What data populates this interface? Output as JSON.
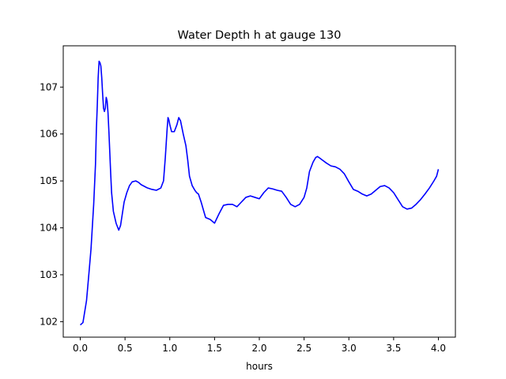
{
  "chart_data": {
    "type": "line",
    "title": "Water Depth h at gauge 130",
    "xlabel": "hours",
    "ylabel": "",
    "xlim": [
      -0.19,
      4.19
    ],
    "ylim": [
      101.67,
      107.88
    ],
    "xticks": [
      0.0,
      0.5,
      1.0,
      1.5,
      2.0,
      2.5,
      3.0,
      3.5,
      4.0
    ],
    "xtick_labels": [
      "0.0",
      "0.5",
      "1.0",
      "1.5",
      "2.0",
      "2.5",
      "3.0",
      "3.5",
      "4.0"
    ],
    "yticks": [
      102,
      103,
      104,
      105,
      106,
      107
    ],
    "ytick_labels": [
      "102",
      "103",
      "104",
      "105",
      "106",
      "107"
    ],
    "grid": false,
    "series": [
      {
        "color": "#0000ff",
        "x": [
          0.0,
          0.03,
          0.07,
          0.1,
          0.12,
          0.15,
          0.17,
          0.18,
          0.19,
          0.2,
          0.21,
          0.22,
          0.23,
          0.24,
          0.25,
          0.26,
          0.27,
          0.28,
          0.29,
          0.3,
          0.31,
          0.32,
          0.33,
          0.34,
          0.35,
          0.37,
          0.4,
          0.43,
          0.45,
          0.47,
          0.49,
          0.52,
          0.55,
          0.58,
          0.62,
          0.65,
          0.68,
          0.72,
          0.75,
          0.8,
          0.85,
          0.9,
          0.93,
          0.95,
          0.97,
          0.98,
          0.99,
          1.0,
          1.02,
          1.05,
          1.08,
          1.1,
          1.12,
          1.15,
          1.18,
          1.2,
          1.22,
          1.25,
          1.28,
          1.3,
          1.32,
          1.35,
          1.38,
          1.4,
          1.45,
          1.5,
          1.55,
          1.6,
          1.65,
          1.7,
          1.75,
          1.8,
          1.85,
          1.9,
          1.95,
          2.0,
          2.05,
          2.1,
          2.15,
          2.2,
          2.25,
          2.3,
          2.35,
          2.4,
          2.45,
          2.5,
          2.53,
          2.56,
          2.6,
          2.63,
          2.65,
          2.68,
          2.7,
          2.75,
          2.8,
          2.85,
          2.9,
          2.95,
          3.0,
          3.05,
          3.1,
          3.15,
          3.2,
          3.25,
          3.3,
          3.35,
          3.4,
          3.45,
          3.5,
          3.55,
          3.6,
          3.65,
          3.7,
          3.75,
          3.8,
          3.85,
          3.9,
          3.95,
          3.98,
          4.0
        ],
        "y": [
          101.93,
          101.98,
          102.45,
          103.1,
          103.55,
          104.5,
          105.35,
          106.1,
          106.6,
          107.2,
          107.55,
          107.52,
          107.45,
          107.2,
          106.85,
          106.55,
          106.48,
          106.55,
          106.78,
          106.7,
          106.45,
          106.05,
          105.6,
          105.15,
          104.75,
          104.35,
          104.1,
          103.95,
          104.05,
          104.3,
          104.55,
          104.75,
          104.9,
          104.98,
          105.0,
          104.97,
          104.92,
          104.88,
          104.85,
          104.82,
          104.8,
          104.85,
          105.0,
          105.5,
          106.1,
          106.35,
          106.3,
          106.2,
          106.05,
          106.05,
          106.2,
          106.35,
          106.28,
          106.0,
          105.75,
          105.45,
          105.1,
          104.9,
          104.8,
          104.75,
          104.72,
          104.55,
          104.35,
          104.22,
          104.18,
          104.1,
          104.3,
          104.48,
          104.5,
          104.5,
          104.45,
          104.55,
          104.65,
          104.68,
          104.65,
          104.62,
          104.75,
          104.85,
          104.83,
          104.8,
          104.78,
          104.65,
          104.5,
          104.45,
          104.5,
          104.65,
          104.85,
          105.2,
          105.4,
          105.5,
          105.52,
          105.48,
          105.45,
          105.38,
          105.32,
          105.3,
          105.25,
          105.15,
          104.98,
          104.82,
          104.78,
          104.72,
          104.68,
          104.72,
          104.8,
          104.88,
          104.9,
          104.85,
          104.75,
          104.6,
          104.45,
          104.4,
          104.42,
          104.5,
          104.6,
          104.72,
          104.85,
          105.0,
          105.1,
          105.25
        ]
      }
    ]
  }
}
